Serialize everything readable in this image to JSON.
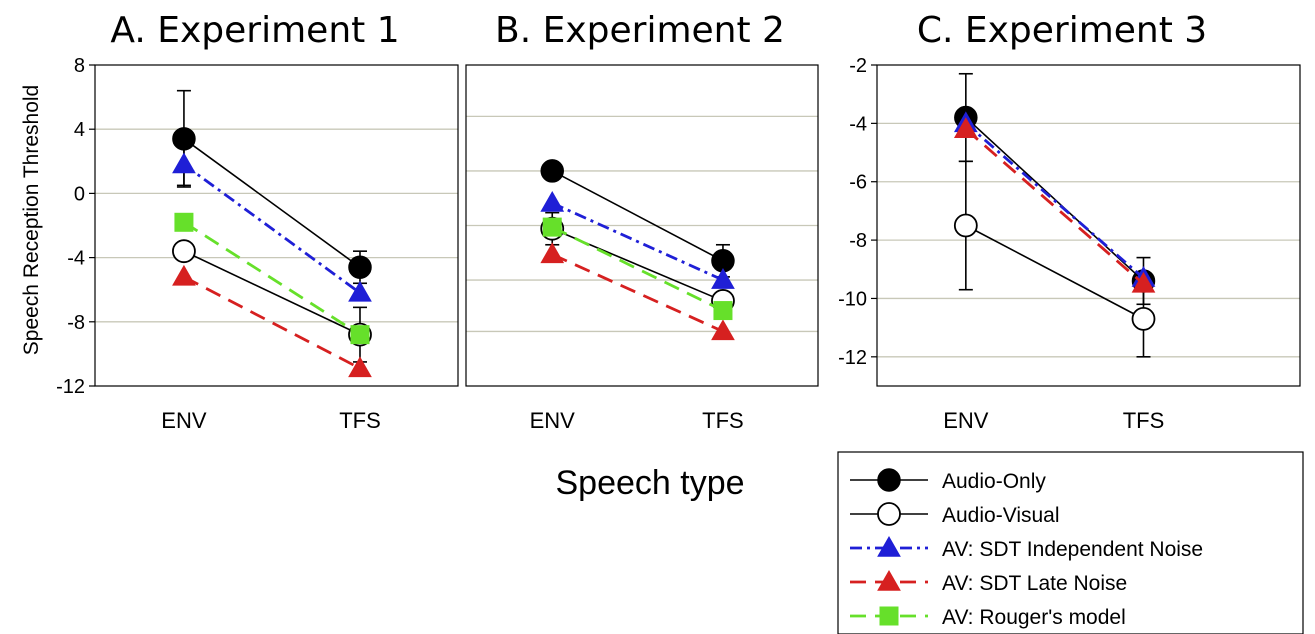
{
  "chart_data": {
    "type": "line",
    "ylabel": "Speech Reception Threshold",
    "xlabel": "Speech type",
    "categories": [
      "ENV",
      "TFS"
    ],
    "legend": {
      "placement": "bottom-right",
      "entries": [
        {
          "key": "ao",
          "name": "Audio-Only",
          "color": "#000000",
          "marker": "filled-circle",
          "dash": "solid"
        },
        {
          "key": "av",
          "name": "Audio-Visual",
          "color": "#000000",
          "marker": "open-circle",
          "dash": "solid"
        },
        {
          "key": "sdt_ind",
          "name": "AV: SDT Independent Noise",
          "color": "#1f1fd6",
          "marker": "triangle",
          "dash": "dashdot"
        },
        {
          "key": "sdt_late",
          "name": "AV: SDT Late Noise",
          "color": "#d62020",
          "marker": "triangle",
          "dash": "dashed"
        },
        {
          "key": "rouger",
          "name": "AV: Rouger's model",
          "color": "#66e02a",
          "marker": "square",
          "dash": "dashed"
        }
      ]
    },
    "panels": [
      {
        "title": "A. Experiment 1",
        "ylim": [
          -12,
          8
        ],
        "yticks": [
          8,
          4,
          0,
          -4,
          -8,
          -12
        ],
        "ytick_labels": [
          "8",
          "4",
          "0",
          "-4",
          "-8",
          "-12"
        ],
        "gridlines": [
          4,
          0,
          -4,
          -8
        ],
        "series": [
          {
            "key": "ao",
            "values": [
              3.4,
              -4.6
            ],
            "err": [
              3.0,
              1.0
            ]
          },
          {
            "key": "av",
            "values": [
              -3.6,
              -8.8
            ],
            "err": [
              0,
              1.7
            ]
          },
          {
            "key": "sdt_ind",
            "values": [
              1.8,
              -6.2
            ],
            "err": [
              1.3,
              0
            ]
          },
          {
            "key": "sdt_late",
            "values": [
              -5.2,
              -10.9
            ],
            "err": [
              0,
              0
            ]
          },
          {
            "key": "rouger",
            "values": [
              -1.8,
              -8.8
            ],
            "err": [
              0,
              0
            ]
          }
        ]
      },
      {
        "title": "B. Experiment 2",
        "ylim": [
          -12,
          8
        ],
        "yticks": [],
        "ytick_labels": [],
        "gridlines": [
          4.8,
          1.4,
          -2.0,
          -5.4,
          -8.6
        ],
        "series": [
          {
            "key": "ao",
            "values": [
              1.4,
              -4.2
            ],
            "err": [
              0,
              1.0
            ]
          },
          {
            "key": "av",
            "values": [
              -2.2,
              -6.7
            ],
            "err": [
              1.0,
              0
            ]
          },
          {
            "key": "sdt_ind",
            "values": [
              -0.6,
              -5.4
            ],
            "err": [
              0,
              0
            ]
          },
          {
            "key": "sdt_late",
            "values": [
              -3.8,
              -8.6
            ],
            "err": [
              0,
              0
            ]
          },
          {
            "key": "rouger",
            "values": [
              -2.1,
              -7.3
            ],
            "err": [
              0,
              0
            ]
          }
        ]
      },
      {
        "title": "C. Experiment 3",
        "ylim": [
          -13,
          -2
        ],
        "yticks": [
          -2,
          -4,
          -6,
          -8,
          -10,
          -12
        ],
        "ytick_labels": [
          "-2",
          "-4",
          "-6",
          "-8",
          "-10",
          "-12"
        ],
        "gridlines": [
          -4,
          -6,
          -8,
          -10,
          -12
        ],
        "series": [
          {
            "key": "ao",
            "values": [
              -3.8,
              -9.4
            ],
            "err": [
              1.5,
              0.8
            ]
          },
          {
            "key": "av",
            "values": [
              -7.5,
              -10.7
            ],
            "err": [
              2.2,
              1.3
            ]
          },
          {
            "key": "sdt_ind",
            "values": [
              -4.0,
              -9.3
            ],
            "err": [
              0,
              0
            ]
          },
          {
            "key": "sdt_late",
            "values": [
              -4.2,
              -9.5
            ],
            "err": [
              0,
              0
            ]
          },
          {
            "key": "rouger",
            "values": [],
            "err": []
          }
        ]
      }
    ]
  }
}
